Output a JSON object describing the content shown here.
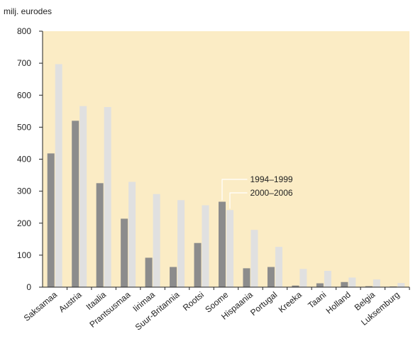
{
  "chart_data": {
    "type": "bar",
    "title": "",
    "ylabel": "milj. eurodes",
    "xlabel": "",
    "ylim": [
      0,
      800
    ],
    "yticks": [
      0,
      100,
      200,
      300,
      400,
      500,
      600,
      700,
      800
    ],
    "grid": false,
    "legend_position": "center-right, annotated beside the Soome bars",
    "colors": {
      "plot_background": "#fbecc5",
      "series_1994_1999": "#8c8c8c",
      "series_2000_2006": "#e0e0e0"
    },
    "categories": [
      "Saksamaa",
      "Austria",
      "Itaalia",
      "Prantsusmaa",
      "Iirimaa",
      "Suur-Britannia",
      "Rootsi",
      "Soome",
      "Hispaania",
      "Portugal",
      "Kreeka",
      "Taani",
      "Holland",
      "Belgia",
      "Luksemburg"
    ],
    "series": [
      {
        "name": "1994–1999",
        "values": [
          418,
          520,
          325,
          214,
          92,
          63,
          138,
          267,
          59,
          63,
          5,
          12,
          16,
          3,
          2
        ]
      },
      {
        "name": "2000–2006",
        "values": [
          697,
          566,
          563,
          329,
          291,
          272,
          256,
          241,
          179,
          126,
          57,
          51,
          30,
          24,
          13
        ]
      }
    ]
  }
}
